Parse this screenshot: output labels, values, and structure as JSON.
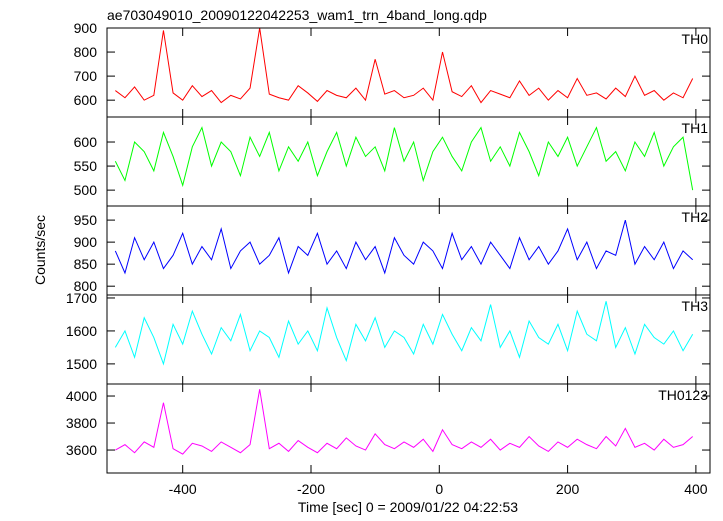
{
  "chart_data": {
    "type": "line",
    "title": "ae703049010_20090122042253_wam1_trn_4band_long.qdp",
    "xlabel": "Time [sec] 0 = 2009/01/22 04:22:53",
    "ylabel": "Counts/sec",
    "xlim": [
      -518,
      422
    ],
    "xticks": [
      -400,
      -200,
      0,
      200,
      400
    ],
    "x": [
      -505,
      -490,
      -475,
      -460,
      -445,
      -430,
      -415,
      -400,
      -385,
      -370,
      -355,
      -340,
      -325,
      -310,
      -295,
      -280,
      -265,
      -250,
      -235,
      -220,
      -205,
      -190,
      -175,
      -160,
      -145,
      -130,
      -115,
      -100,
      -85,
      -70,
      -55,
      -40,
      -25,
      -10,
      5,
      20,
      35,
      50,
      65,
      80,
      95,
      110,
      125,
      140,
      155,
      170,
      185,
      200,
      215,
      230,
      245,
      260,
      275,
      290,
      305,
      320,
      335,
      350,
      365,
      380,
      395
    ],
    "series": [
      {
        "name": "TH0",
        "color": "#ff0000",
        "ylim": [
          530,
          900
        ],
        "yticks": [
          600,
          700,
          800,
          900
        ],
        "values": [
          640,
          610,
          655,
          600,
          620,
          890,
          630,
          600,
          660,
          615,
          640,
          590,
          620,
          605,
          650,
          900,
          625,
          610,
          600,
          660,
          630,
          595,
          640,
          620,
          610,
          650,
          600,
          770,
          625,
          640,
          610,
          620,
          650,
          600,
          800,
          635,
          615,
          660,
          590,
          640,
          625,
          610,
          680,
          620,
          650,
          600,
          640,
          610,
          690,
          620,
          630,
          605,
          650,
          615,
          700,
          620,
          640,
          600,
          630,
          610,
          690
        ]
      },
      {
        "name": "TH1",
        "color": "#00ff00",
        "ylim": [
          467,
          652
        ],
        "yticks": [
          500,
          550,
          600
        ],
        "values": [
          560,
          520,
          600,
          580,
          540,
          620,
          570,
          510,
          590,
          630,
          550,
          600,
          580,
          530,
          610,
          570,
          620,
          540,
          590,
          560,
          600,
          530,
          580,
          620,
          550,
          610,
          570,
          590,
          540,
          630,
          560,
          600,
          520,
          580,
          610,
          570,
          540,
          600,
          630,
          560,
          590,
          550,
          620,
          580,
          530,
          600,
          570,
          610,
          550,
          590,
          630,
          560,
          580,
          540,
          600,
          570,
          620,
          550,
          590,
          610,
          500
        ]
      },
      {
        "name": "TH2",
        "color": "#0000ff",
        "ylim": [
          780,
          982
        ],
        "yticks": [
          800,
          850,
          900,
          950
        ],
        "values": [
          880,
          830,
          910,
          860,
          900,
          840,
          870,
          920,
          850,
          890,
          860,
          930,
          840,
          880,
          900,
          850,
          870,
          910,
          830,
          890,
          870,
          920,
          850,
          880,
          840,
          900,
          860,
          890,
          830,
          910,
          870,
          850,
          900,
          880,
          840,
          920,
          860,
          890,
          850,
          900,
          870,
          840,
          910,
          860,
          890,
          850,
          880,
          930,
          860,
          900,
          840,
          880,
          870,
          950,
          850,
          890,
          860,
          900,
          840,
          880,
          860
        ]
      },
      {
        "name": "TH3",
        "color": "#00ffff",
        "ylim": [
          1439,
          1709
        ],
        "yticks": [
          1500,
          1600,
          1700
        ],
        "values": [
          1550,
          1600,
          1520,
          1640,
          1580,
          1500,
          1620,
          1560,
          1660,
          1590,
          1530,
          1610,
          1570,
          1650,
          1540,
          1600,
          1580,
          1520,
          1630,
          1560,
          1600,
          1540,
          1670,
          1580,
          1510,
          1620,
          1570,
          1640,
          1550,
          1600,
          1580,
          1530,
          1620,
          1560,
          1650,
          1590,
          1540,
          1610,
          1570,
          1680,
          1550,
          1600,
          1520,
          1630,
          1580,
          1560,
          1620,
          1540,
          1660,
          1590,
          1570,
          1690,
          1550,
          1610,
          1530,
          1620,
          1580,
          1560,
          1600,
          1540,
          1590
        ]
      },
      {
        "name": "TH0123",
        "color": "#ff00ff",
        "ylim": [
          3430,
          4089
        ],
        "yticks": [
          3600,
          3800,
          4000
        ],
        "values": [
          3600,
          3640,
          3580,
          3660,
          3620,
          3950,
          3610,
          3570,
          3650,
          3630,
          3590,
          3660,
          3620,
          3580,
          3640,
          4050,
          3610,
          3650,
          3590,
          3670,
          3620,
          3580,
          3650,
          3610,
          3690,
          3630,
          3600,
          3720,
          3640,
          3610,
          3660,
          3620,
          3680,
          3590,
          3750,
          3640,
          3610,
          3660,
          3620,
          3680,
          3600,
          3650,
          3620,
          3700,
          3630,
          3590,
          3660,
          3620,
          3680,
          3640,
          3610,
          3700,
          3630,
          3760,
          3620,
          3650,
          3600,
          3680,
          3620,
          3640,
          3700
        ]
      }
    ]
  }
}
